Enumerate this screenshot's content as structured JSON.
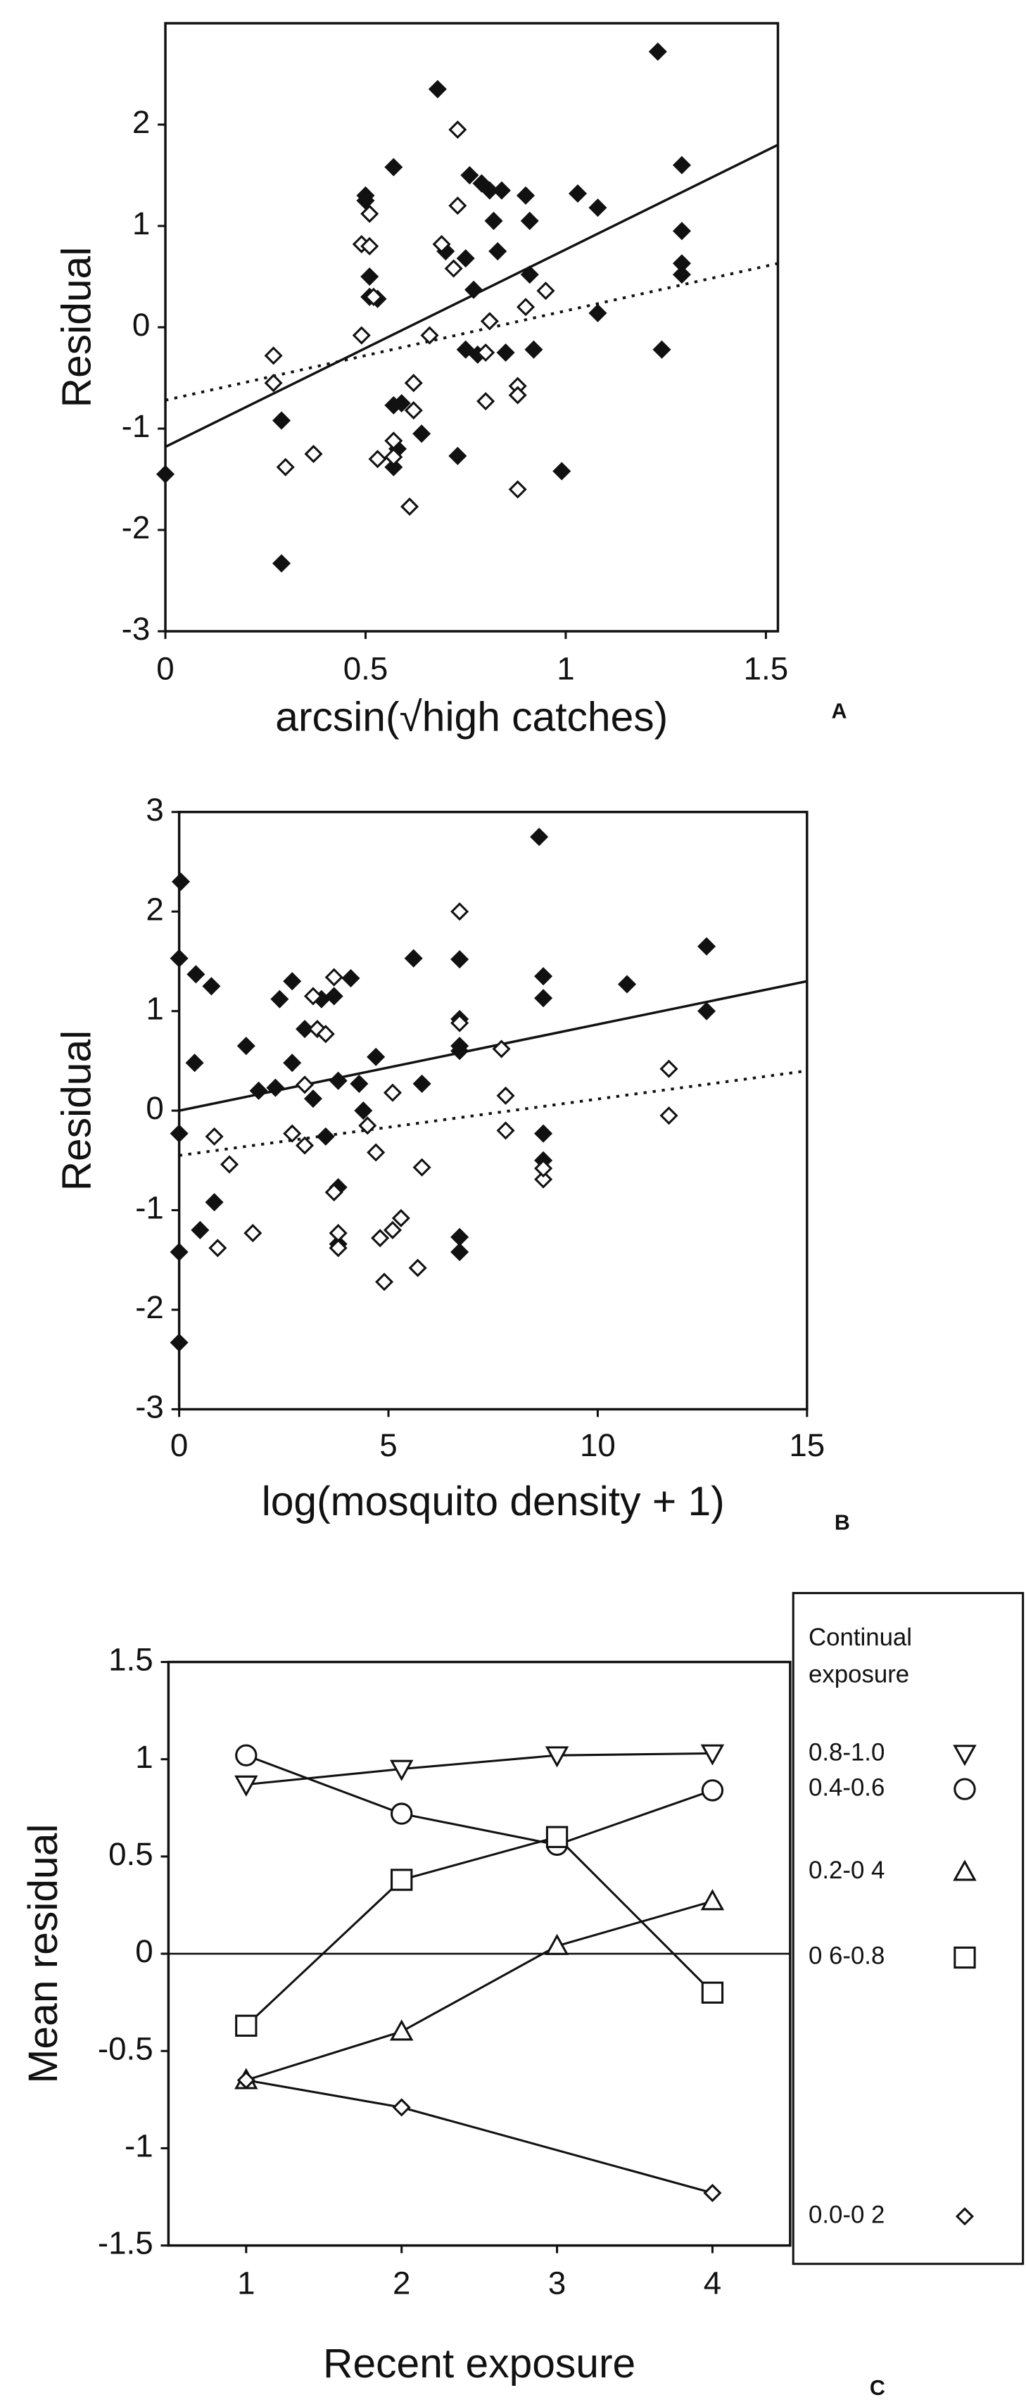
{
  "chart_data": [
    {
      "type": "scatter",
      "panel_label": "A",
      "x_label": "arcsin(√high catches)",
      "y_label": "Residual",
      "xlim": [
        0,
        1.53
      ],
      "ylim": [
        -3,
        3
      ],
      "xticks": [
        0,
        0.5,
        1,
        1.5
      ],
      "yticks": [
        -3,
        -2,
        -1,
        0,
        1,
        2
      ],
      "series": [
        {
          "marker": "filled-diamond",
          "color": "#111111",
          "x": [
            0,
            0.29,
            0.29,
            0.5,
            0.5,
            0.51,
            0.51,
            0.53,
            0.57,
            0.57,
            0.59,
            0.58,
            0.57,
            0.64,
            0.68,
            0.7,
            0.75,
            0.73,
            0.77,
            0.76,
            0.79,
            0.81,
            0.82,
            0.83,
            0.84,
            0.75,
            0.78,
            0.85,
            0.9,
            0.91,
            0.92,
            0.91,
            0.99,
            1.03,
            1.08,
            1.08,
            1.23,
            1.24,
            1.29,
            1.29,
            1.29,
            1.29
          ],
          "values": [
            -1.45,
            -2.33,
            -0.92,
            1.3,
            1.25,
            0.5,
            0.3,
            0.28,
            1.58,
            -0.77,
            -0.75,
            -1.2,
            -1.38,
            -1.05,
            2.35,
            0.75,
            0.68,
            -1.27,
            0.37,
            1.5,
            1.42,
            1.35,
            1.05,
            0.75,
            1.35,
            -0.22,
            -0.27,
            -0.25,
            1.3,
            1.05,
            -0.22,
            0.52,
            -1.42,
            1.32,
            1.18,
            0.14,
            2.72,
            -0.22,
            1.6,
            0.95,
            0.63,
            0.52
          ]
        },
        {
          "marker": "open-diamond",
          "color": "#111111",
          "x": [
            0.27,
            0.27,
            0.3,
            0.37,
            0.49,
            0.49,
            0.51,
            0.51,
            0.52,
            0.53,
            0.57,
            0.57,
            0.62,
            0.62,
            0.61,
            0.66,
            0.69,
            0.72,
            0.73,
            0.73,
            0.8,
            0.81,
            0.8,
            0.88,
            0.88,
            0.88,
            0.9,
            0.95
          ],
          "values": [
            -0.28,
            -0.55,
            -1.38,
            -1.25,
            -0.08,
            0.82,
            0.8,
            1.12,
            0.3,
            -1.3,
            -1.12,
            -1.28,
            -0.55,
            -0.82,
            -1.77,
            -0.08,
            0.82,
            0.58,
            1.95,
            1.2,
            -0.25,
            0.06,
            -0.73,
            -0.58,
            -0.67,
            -1.6,
            0.2,
            0.36
          ]
        }
      ],
      "fit_lines": [
        {
          "style": "solid",
          "x": [
            0,
            1.53
          ],
          "values": [
            -1.18,
            1.8
          ]
        },
        {
          "style": "dotted",
          "x": [
            0,
            1.53
          ],
          "values": [
            -0.72,
            0.63
          ]
        }
      ]
    },
    {
      "type": "scatter",
      "panel_label": "B",
      "x_label": "log(mosquito density + 1)",
      "y_label": "Residual",
      "xlim": [
        0,
        15
      ],
      "ylim": [
        -3,
        3
      ],
      "xticks": [
        0,
        5,
        10,
        15
      ],
      "yticks": [
        -3,
        -2,
        -1,
        0,
        1,
        2,
        3
      ],
      "series": [
        {
          "marker": "filled-diamond",
          "color": "#111111",
          "x": [
            0,
            0.04,
            0,
            0,
            0,
            0.37,
            0.4,
            0.77,
            0.5,
            0.84,
            1.6,
            1.9,
            2.3,
            2.4,
            2.7,
            2.7,
            3,
            3.2,
            3.4,
            3.5,
            3.7,
            3.8,
            3.8,
            3.8,
            4.1,
            4.3,
            4.7,
            4.4,
            5.6,
            5.8,
            6.7,
            6.7,
            6.7,
            6.7,
            6.7,
            6.7,
            8.6,
            8.7,
            8.7,
            8.7,
            8.7,
            10.7,
            12.6,
            12.6
          ],
          "values": [
            1.53,
            2.3,
            -0.23,
            -1.42,
            -2.33,
            0.48,
            1.37,
            1.25,
            -1.2,
            -0.92,
            0.65,
            0.2,
            0.23,
            1.12,
            1.3,
            0.48,
            0.82,
            0.12,
            1.12,
            -0.26,
            1.15,
            0.3,
            -0.77,
            -1.34,
            1.33,
            0.27,
            0.54,
            0,
            1.53,
            0.27,
            0.6,
            1.52,
            0.92,
            0.65,
            -1.27,
            -1.42,
            2.75,
            1.35,
            1.13,
            -0.23,
            -0.5,
            1.27,
            1.65,
            1
          ]
        },
        {
          "marker": "open-diamond",
          "color": "#111111",
          "x": [
            0.84,
            0.92,
            1.2,
            1.76,
            2.7,
            3,
            3,
            3.2,
            3.3,
            3.5,
            3.7,
            3.7,
            3.8,
            3.8,
            4.5,
            4.7,
            4.8,
            4.9,
            5.1,
            5.1,
            5.3,
            5.7,
            5.8,
            6.7,
            6.7,
            7.7,
            7.8,
            7.8,
            8.7,
            8.7,
            11.7,
            11.7
          ],
          "values": [
            -0.26,
            -1.38,
            -0.54,
            -1.23,
            -0.23,
            -0.35,
            0.26,
            1.15,
            0.82,
            0.77,
            1.34,
            -0.82,
            -1.23,
            -1.38,
            -0.15,
            -0.42,
            -1.28,
            -1.72,
            0.18,
            -1.2,
            -1.08,
            -1.58,
            -0.57,
            2,
            0.88,
            0.62,
            0.15,
            -0.2,
            -0.69,
            -0.58,
            0.42,
            -0.05
          ]
        }
      ],
      "fit_lines": [
        {
          "style": "solid",
          "x": [
            0,
            15
          ],
          "values": [
            0,
            1.3
          ]
        },
        {
          "style": "dotted",
          "x": [
            0,
            15
          ],
          "values": [
            -0.45,
            0.4
          ]
        }
      ]
    },
    {
      "type": "line",
      "panel_label": "C",
      "x_label": "Recent exposure",
      "y_label": "Mean residual",
      "legend_title": [
        "Continual",
        "exposure"
      ],
      "zero_line": true,
      "xlim": [
        0.5,
        4.5
      ],
      "ylim": [
        -1.5,
        1.5
      ],
      "xticks": [
        1,
        2,
        3,
        4
      ],
      "yticks": [
        -1.5,
        -1,
        -0.5,
        0,
        0.5,
        1,
        1.5
      ],
      "series": [
        {
          "name": "0.8-1.0",
          "marker": "triangle-down",
          "color": "#111111",
          "x": [
            1,
            2,
            3,
            4
          ],
          "values": [
            0.87,
            0.95,
            1.02,
            1.03
          ]
        },
        {
          "name": "0.4-0.6",
          "marker": "circle",
          "color": "#111111",
          "x": [
            1,
            2,
            3,
            4
          ],
          "values": [
            1.02,
            0.72,
            0.56,
            0.84
          ]
        },
        {
          "name": "0.2-0 4",
          "marker": "triangle-up",
          "color": "#111111",
          "x": [
            1,
            2,
            3,
            4
          ],
          "values": [
            -0.65,
            -0.4,
            0.04,
            0.27
          ]
        },
        {
          "name": "0 6-0.8",
          "marker": "square",
          "color": "#111111",
          "x": [
            1,
            2,
            3,
            4
          ],
          "values": [
            -0.37,
            0.38,
            0.6,
            -0.2
          ]
        },
        {
          "name": "0.0-0 2",
          "marker": "open-diamond",
          "color": "#111111",
          "x": [
            1,
            2,
            4
          ],
          "values": [
            -0.65,
            -0.79,
            -1.23
          ]
        }
      ]
    }
  ]
}
